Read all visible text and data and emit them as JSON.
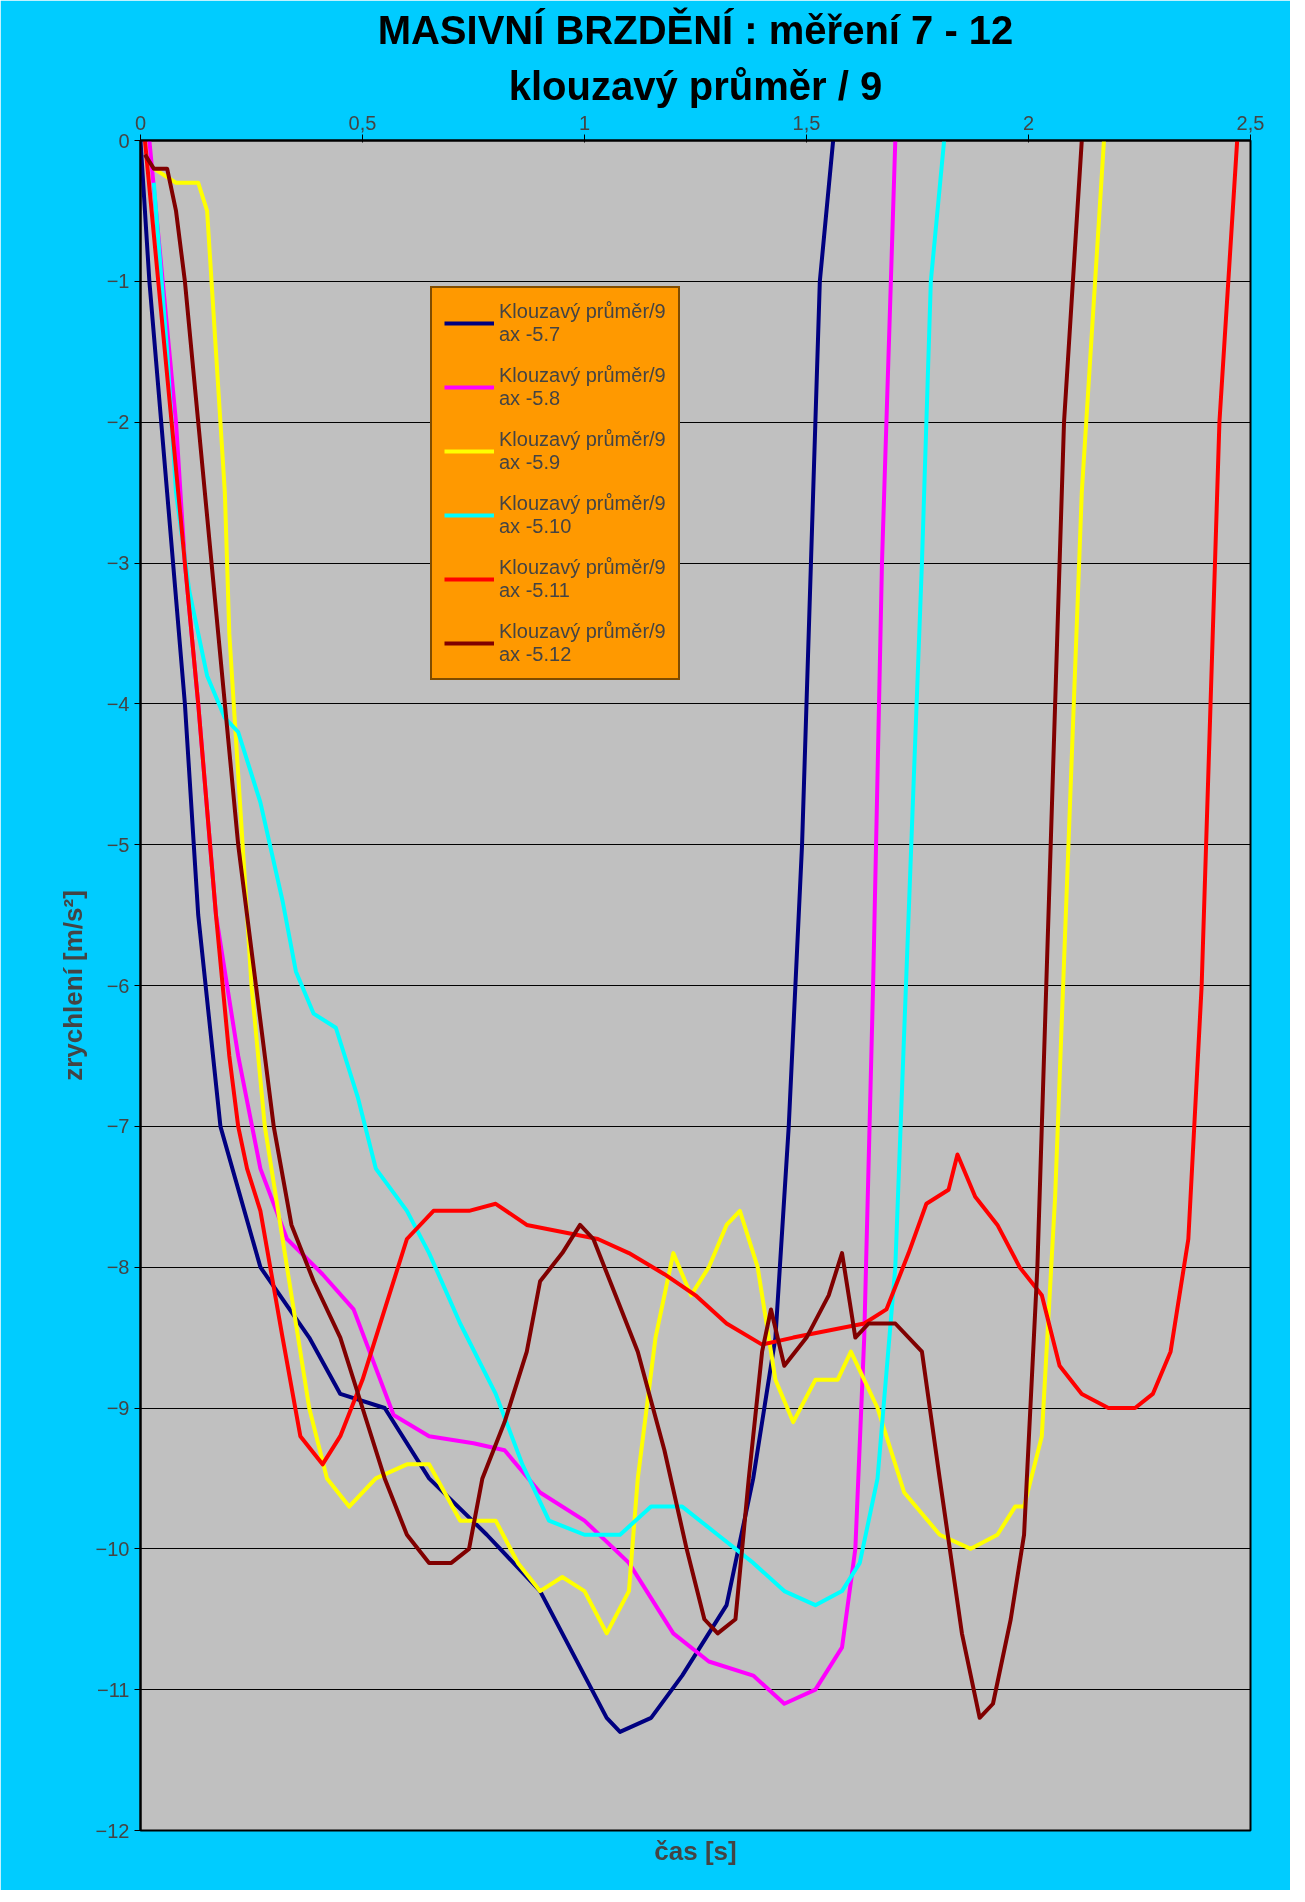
{
  "chart_data": {
    "type": "line",
    "title": "MASIVNÍ BRZDĚNÍ : měření 7 - 12",
    "subtitle": "klouzavý průměr / 9",
    "xlabel": "čas [s]",
    "ylabel": "zrychlení [m/s²]",
    "xlim": [
      0,
      2.5
    ],
    "xticks": [
      0,
      {
        "value": 0.5,
        "label": "0,5"
      },
      1,
      {
        "value": 1.5,
        "label": "1,5"
      },
      2,
      {
        "value": 2.5,
        "label": "2,5"
      }
    ],
    "ylim": [
      -12,
      0
    ],
    "yticks": [
      0,
      -1,
      -2,
      -3,
      -4,
      -5,
      -6,
      -7,
      -8,
      -9,
      -10,
      -11,
      -12
    ],
    "grid": "y",
    "legend": "top left",
    "line_style": "solid",
    "marker": "none",
    "series": [
      {
        "name": "Klouzavý průměr/9\nax -5.7",
        "color": "#000080",
        "x": [
          0,
          0.02,
          0.06,
          0.1,
          0.13,
          0.18,
          0.27,
          0.38,
          0.45,
          0.55,
          0.65,
          0.78,
          0.9,
          1.0,
          1.05,
          1.08,
          1.15,
          1.22,
          1.32,
          1.38,
          1.43,
          1.46,
          1.49,
          1.51,
          1.53,
          1.56
        ],
        "values": [
          0,
          -1,
          -2.5,
          -4,
          -5.5,
          -7,
          -8,
          -8.5,
          -8.9,
          -9.0,
          -9.5,
          -9.9,
          -10.3,
          -10.9,
          -11.2,
          -11.3,
          -11.2,
          -10.9,
          -10.4,
          -9.5,
          -8.5,
          -7,
          -5,
          -3,
          -1,
          0
        ]
      },
      {
        "name": "Klouzavý průměr/9\nax -5.8",
        "color": "#ff00ff",
        "x": [
          0.02,
          0.05,
          0.08,
          0.1,
          0.13,
          0.17,
          0.22,
          0.27,
          0.33,
          0.41,
          0.48,
          0.57,
          0.65,
          0.75,
          0.82,
          0.9,
          1.0,
          1.1,
          1.2,
          1.28,
          1.38,
          1.45,
          1.52,
          1.58,
          1.61,
          1.63,
          1.65,
          1.67,
          1.69,
          1.7
        ],
        "values": [
          0,
          -1,
          -2,
          -3,
          -4,
          -5.5,
          -6.5,
          -7.3,
          -7.8,
          -8.05,
          -8.3,
          -9.05,
          -9.2,
          -9.25,
          -9.3,
          -9.6,
          -9.8,
          -10.1,
          -10.6,
          -10.8,
          -10.9,
          -11.1,
          -11.0,
          -10.7,
          -10,
          -8.5,
          -6,
          -3,
          -1,
          0
        ]
      },
      {
        "name": "Klouzavý průměr/9\nax -5.9",
        "color": "#ffff00",
        "x": [
          0.03,
          0.08,
          0.13,
          0.15,
          0.17,
          0.19,
          0.2,
          0.22,
          0.25,
          0.28,
          0.33,
          0.38,
          0.42,
          0.47,
          0.53,
          0.6,
          0.65,
          0.72,
          0.8,
          0.85,
          0.9,
          0.95,
          1.0,
          1.05,
          1.1,
          1.12,
          1.16,
          1.2,
          1.24,
          1.28,
          1.32,
          1.35,
          1.39,
          1.43,
          1.47,
          1.52,
          1.57,
          1.6,
          1.66,
          1.72,
          1.8,
          1.87,
          1.93,
          1.97,
          1.99,
          2.03,
          2.06,
          2.09,
          2.12,
          2.17
        ],
        "values": [
          -0.2,
          -0.3,
          -0.3,
          -0.5,
          -1.5,
          -2.5,
          -3.5,
          -4.5,
          -6,
          -7,
          -8,
          -9,
          -9.5,
          -9.7,
          -9.5,
          -9.4,
          -9.4,
          -9.8,
          -9.8,
          -10.1,
          -10.3,
          -10.2,
          -10.3,
          -10.6,
          -10.3,
          -9.5,
          -8.5,
          -7.9,
          -8.2,
          -8.0,
          -7.7,
          -7.6,
          -8.0,
          -8.8,
          -9.1,
          -8.8,
          -8.8,
          -8.6,
          -9.0,
          -9.6,
          -9.9,
          -10,
          -9.9,
          -9.7,
          -9.7,
          -9.2,
          -7.5,
          -5,
          -2.5,
          0
        ]
      },
      {
        "name": "Klouzavý průměr/9\nax -5.10",
        "color": "#00ffff",
        "x": [
          0.03,
          0.06,
          0.08,
          0.11,
          0.15,
          0.19,
          0.22,
          0.27,
          0.32,
          0.35,
          0.39,
          0.44,
          0.49,
          0.53,
          0.6,
          0.65,
          0.72,
          0.8,
          0.86,
          0.92,
          1.0,
          1.08,
          1.15,
          1.22,
          1.3,
          1.38,
          1.45,
          1.52,
          1.58,
          1.62,
          1.66,
          1.7,
          1.73,
          1.76,
          1.78,
          1.81
        ],
        "values": [
          -0.3,
          -1.5,
          -2.5,
          -3.2,
          -3.8,
          -4.1,
          -4.2,
          -4.7,
          -5.4,
          -5.9,
          -6.2,
          -6.3,
          -6.8,
          -7.3,
          -7.6,
          -7.9,
          -8.4,
          -8.9,
          -9.4,
          -9.8,
          -9.9,
          -9.9,
          -9.7,
          -9.7,
          -9.9,
          -10.1,
          -10.3,
          -10.4,
          -10.3,
          -10.1,
          -9.5,
          -8,
          -5.5,
          -3,
          -1,
          0
        ]
      },
      {
        "name": "Klouzavý průměr/9\nax -5.11",
        "color": "#ff0000",
        "x": [
          0.01,
          0.04,
          0.07,
          0.1,
          0.13,
          0.17,
          0.2,
          0.22,
          0.24,
          0.27,
          0.32,
          0.36,
          0.41,
          0.45,
          0.5,
          0.55,
          0.6,
          0.66,
          0.74,
          0.8,
          0.87,
          0.95,
          1.03,
          1.1,
          1.18,
          1.25,
          1.32,
          1.4,
          1.47,
          1.55,
          1.63,
          1.68,
          1.73,
          1.77,
          1.82,
          1.84,
          1.88,
          1.93,
          1.98,
          2.03,
          2.07,
          2.12,
          2.18,
          2.24,
          2.28,
          2.32,
          2.36,
          2.39,
          2.41,
          2.43,
          2.47
        ],
        "values": [
          0,
          -1,
          -2,
          -3,
          -4,
          -5.5,
          -6.5,
          -7,
          -7.3,
          -7.6,
          -8.5,
          -9.2,
          -9.4,
          -9.2,
          -8.8,
          -8.3,
          -7.8,
          -7.6,
          -7.6,
          -7.55,
          -7.7,
          -7.75,
          -7.8,
          -7.9,
          -8.05,
          -8.2,
          -8.4,
          -8.55,
          -8.5,
          -8.45,
          -8.4,
          -8.3,
          -7.9,
          -7.55,
          -7.45,
          -7.2,
          -7.5,
          -7.7,
          -8.0,
          -8.2,
          -8.7,
          -8.9,
          -9.0,
          -9.0,
          -8.9,
          -8.6,
          -7.8,
          -6,
          -4,
          -2,
          0
        ]
      },
      {
        "name": "Klouzavý průměr/9\nax -5.12",
        "color": "#800000",
        "x": [
          0.01,
          0.03,
          0.06,
          0.08,
          0.1,
          0.13,
          0.16,
          0.19,
          0.22,
          0.26,
          0.3,
          0.34,
          0.39,
          0.45,
          0.5,
          0.55,
          0.6,
          0.65,
          0.7,
          0.74,
          0.77,
          0.82,
          0.87,
          0.9,
          0.95,
          0.99,
          1.02,
          1.07,
          1.12,
          1.18,
          1.23,
          1.27,
          1.3,
          1.34,
          1.37,
          1.4,
          1.42,
          1.45,
          1.5,
          1.55,
          1.58,
          1.61,
          1.64,
          1.7,
          1.76,
          1.8,
          1.85,
          1.89,
          1.92,
          1.96,
          1.99,
          2.02,
          2.05,
          2.08,
          2.12
        ],
        "values": [
          -0.1,
          -0.2,
          -0.2,
          -0.5,
          -1,
          -2,
          -3,
          -4,
          -5,
          -6,
          -7,
          -7.7,
          -8.1,
          -8.5,
          -9.0,
          -9.5,
          -9.9,
          -10.1,
          -10.1,
          -10.0,
          -9.5,
          -9.1,
          -8.6,
          -8.1,
          -7.9,
          -7.7,
          -7.8,
          -8.2,
          -8.6,
          -9.3,
          -10,
          -10.5,
          -10.6,
          -10.5,
          -9.5,
          -8.6,
          -8.3,
          -8.7,
          -8.5,
          -8.2,
          -7.9,
          -8.5,
          -8.4,
          -8.4,
          -8.6,
          -9.5,
          -10.6,
          -11.2,
          -11.1,
          -10.5,
          -9.9,
          -8,
          -5,
          -2,
          0
        ]
      }
    ]
  }
}
